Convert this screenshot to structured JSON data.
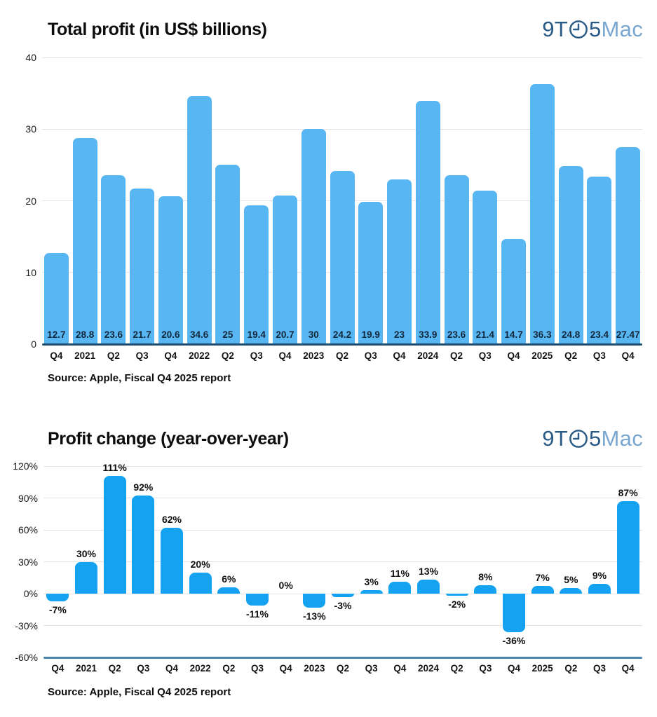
{
  "page": {
    "background": "#ffffff"
  },
  "logo": {
    "prefix": "9T",
    "mid": "5",
    "suffix": "Mac",
    "dark_color": "#2a5a86",
    "light_color": "#7aa6d2",
    "clock_icon": "clock-face-showing-nine-o-clock"
  },
  "chart_data": [
    {
      "type": "bar",
      "title": "Total profit (in US$ billions)",
      "source": "Source: Apple, Fiscal Q4 2025 report",
      "categories": [
        "Q4",
        "2021",
        "Q2",
        "Q3",
        "Q4",
        "2022",
        "Q2",
        "Q3",
        "Q4",
        "2023",
        "Q2",
        "Q3",
        "Q4",
        "2024",
        "Q2",
        "Q3",
        "Q4",
        "2025",
        "Q2",
        "Q3",
        "Q4"
      ],
      "values": [
        12.7,
        28.8,
        23.6,
        21.7,
        20.6,
        34.6,
        25,
        19.4,
        20.7,
        30,
        24.2,
        19.9,
        23,
        33.9,
        23.6,
        21.4,
        14.7,
        36.3,
        24.8,
        23.4,
        27.47
      ],
      "value_labels": [
        "12.7",
        "28.8",
        "23.6",
        "21.7",
        "20.6",
        "34.6",
        "25",
        "19.4",
        "20.7",
        "30",
        "24.2",
        "19.9",
        "23",
        "33.9",
        "23.6",
        "21.4",
        "14.7",
        "36.3",
        "24.8",
        "23.4",
        "27.47"
      ],
      "ylim": [
        0,
        40
      ],
      "yticks": [
        0,
        10,
        20,
        30,
        40
      ],
      "ytick_labels": [
        "0",
        "10",
        "20",
        "30",
        "40"
      ],
      "axis_tick": 0,
      "grid": true,
      "legend": "none",
      "bar_color": "#58b6f2",
      "axis_color": "#1d4d72",
      "value_label_color": "#13273b",
      "value_label_position": "inside-base"
    },
    {
      "type": "bar",
      "title": "Profit change (year-over-year)",
      "source": "Source: Apple, Fiscal Q4 2025 report",
      "categories": [
        "Q4",
        "2021",
        "Q2",
        "Q3",
        "Q4",
        "2022",
        "Q2",
        "Q3",
        "Q4",
        "2023",
        "Q2",
        "Q3",
        "Q4",
        "2024",
        "Q2",
        "Q3",
        "Q4",
        "2025",
        "Q2",
        "Q3",
        "Q4"
      ],
      "values": [
        -7,
        30,
        111,
        92,
        62,
        20,
        6,
        -11,
        0,
        -13,
        -3,
        3,
        11,
        13,
        -2,
        8,
        -36,
        7,
        5,
        9,
        87
      ],
      "value_labels": [
        "-7%",
        "30%",
        "111%",
        "92%",
        "62%",
        "20%",
        "6%",
        "-11%",
        "0%",
        "-13%",
        "-3%",
        "3%",
        "11%",
        "13%",
        "-2%",
        "8%",
        "-36%",
        "7%",
        "5%",
        "9%",
        "87%"
      ],
      "ylim": [
        -60,
        120
      ],
      "yticks": [
        -60,
        -30,
        0,
        30,
        60,
        90,
        120
      ],
      "ytick_labels": [
        "-60%",
        "-30%",
        "0%",
        "30%",
        "60%",
        "90%",
        "120%"
      ],
      "axis_tick": -60,
      "grid": true,
      "legend": "none",
      "bar_color": "#14a2f1",
      "axis_color": "#4a86ad",
      "value_label_color": "#0f0f0f",
      "value_label_position": "outside-end"
    }
  ]
}
